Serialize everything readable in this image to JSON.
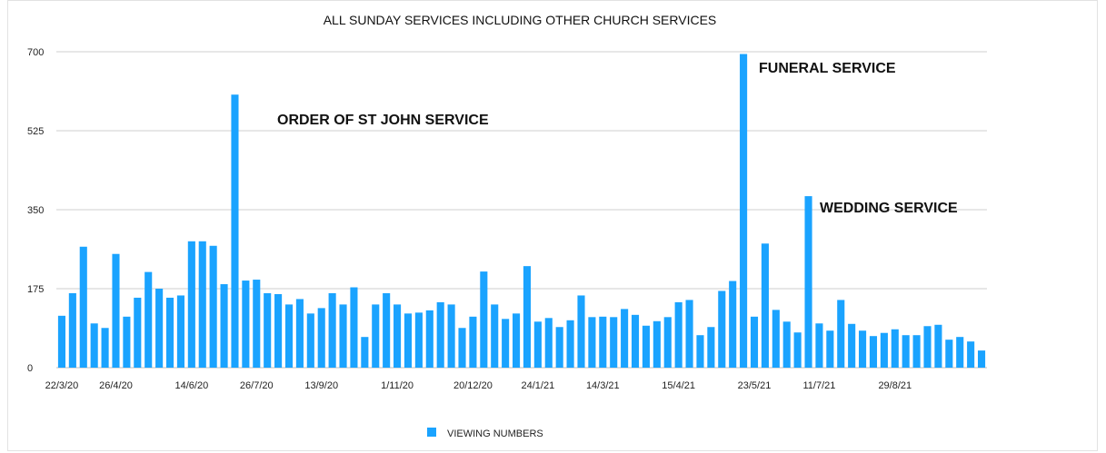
{
  "chart_data": {
    "type": "bar",
    "title": "ALL SUNDAY SERVICES INCLUDING OTHER CHURCH SERVICES",
    "xlabel": "",
    "ylabel": "",
    "ylim": [
      0,
      700
    ],
    "yticks": [
      "0",
      "175",
      "350",
      "525",
      "700"
    ],
    "grid": true,
    "legend_position": "bottom",
    "x_tick_labels": [
      {
        "index": 0,
        "label": "22/3/20"
      },
      {
        "index": 5,
        "label": "26/4/20"
      },
      {
        "index": 12,
        "label": "14/6/20"
      },
      {
        "index": 18,
        "label": "26/7/20"
      },
      {
        "index": 24,
        "label": "13/9/20"
      },
      {
        "index": 31,
        "label": "1/11/20"
      },
      {
        "index": 38,
        "label": "20/12/20"
      },
      {
        "index": 44,
        "label": "24/1/21"
      },
      {
        "index": 50,
        "label": "14/3/21"
      },
      {
        "index": 57,
        "label": "15/4/21"
      },
      {
        "index": 64,
        "label": "23/5/21"
      },
      {
        "index": 70,
        "label": "11/7/21"
      },
      {
        "index": 77,
        "label": "29/8/21"
      }
    ],
    "series": [
      {
        "name": "VIEWING NUMBERS",
        "color": "#1aa3ff",
        "values": [
          115,
          165,
          268,
          98,
          88,
          252,
          113,
          155,
          212,
          175,
          155,
          160,
          280,
          280,
          270,
          185,
          605,
          193,
          195,
          165,
          163,
          140,
          152,
          120,
          132,
          165,
          140,
          178,
          68,
          140,
          165,
          140,
          120,
          122,
          127,
          145,
          140,
          88,
          113,
          213,
          140,
          108,
          120,
          225,
          102,
          110,
          90,
          105,
          160,
          112,
          113,
          112,
          130,
          117,
          93,
          103,
          112,
          145,
          150,
          72,
          90,
          170,
          192,
          695,
          113,
          275,
          128,
          102,
          78,
          380,
          98,
          82,
          150,
          97,
          82,
          70,
          77,
          85,
          72,
          72,
          92,
          95,
          62,
          68,
          58,
          38
        ]
      }
    ],
    "annotations": [
      {
        "text": "ORDER OF ST JOHN SERVICE"
      },
      {
        "text": "FUNERAL SERVICE"
      },
      {
        "text": "WEDDING SERVICE"
      }
    ]
  }
}
